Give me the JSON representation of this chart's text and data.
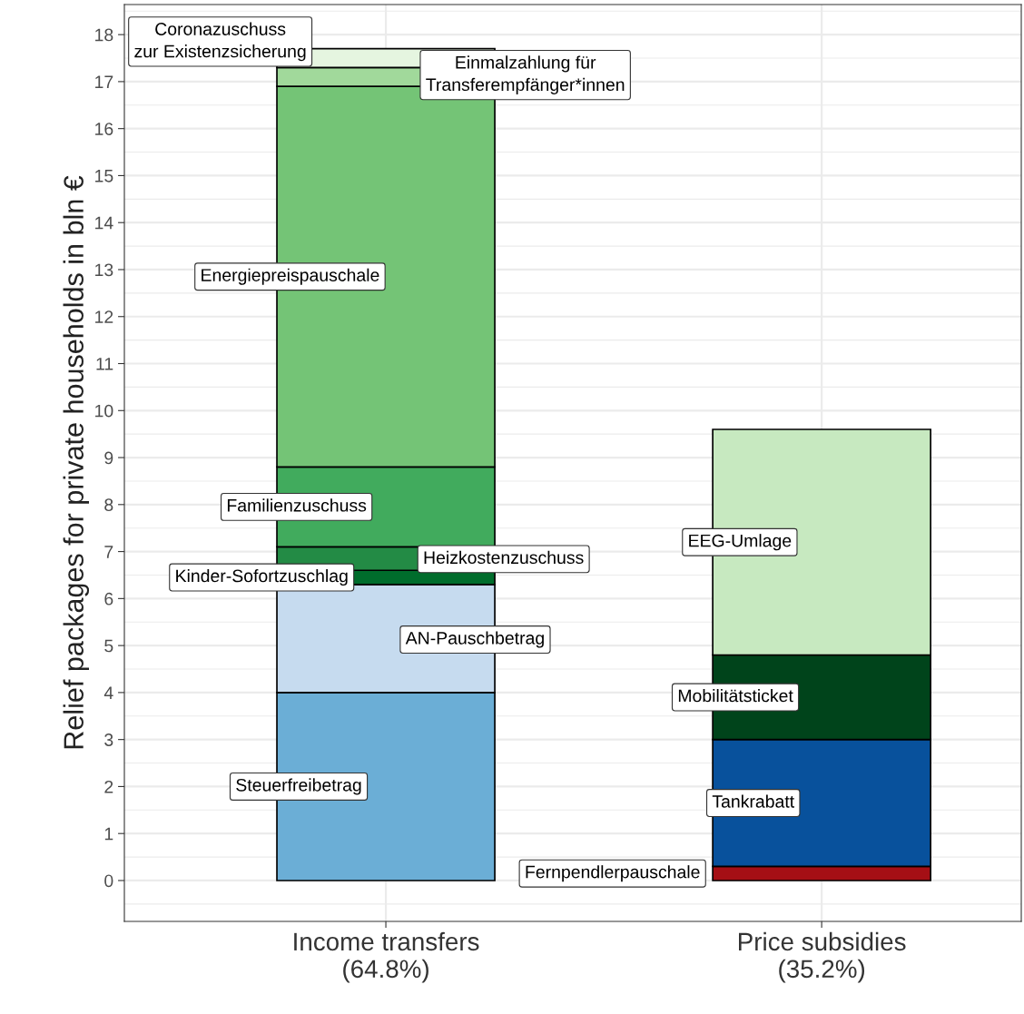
{
  "chart_data": {
    "type": "bar",
    "stacked": true,
    "categories": [
      "Income transfers\n(64.8%)",
      "Price subsidies\n(35.2%)"
    ],
    "ylabel": "Relief packages for private households in bln €",
    "ylim": [
      -0.87,
      18.64
    ],
    "yticks": [
      0,
      1,
      2,
      3,
      4,
      5,
      6,
      7,
      8,
      9,
      10,
      11,
      12,
      13,
      14,
      15,
      16,
      17,
      18
    ],
    "grid": true,
    "legend": false,
    "series": [
      {
        "name": "Steuerfreibetrag",
        "color": "#6baed6",
        "values": [
          4.0,
          null
        ]
      },
      {
        "name": "AN-Pauschbetrag",
        "color": "#c6dbef",
        "values": [
          2.3,
          null
        ]
      },
      {
        "name": "Kinder-Sofortzuschlag",
        "color": "#006d2c",
        "values": [
          0.3,
          null
        ]
      },
      {
        "name": "Heizkostenzuschuss",
        "color": "#238b45",
        "values": [
          0.5,
          null
        ]
      },
      {
        "name": "Familienzuschuss",
        "color": "#41ab5d",
        "values": [
          1.7,
          null
        ]
      },
      {
        "name": "Energiepreispauschale",
        "color": "#74c476",
        "values": [
          8.1,
          null
        ]
      },
      {
        "name": "Einmalzahlung für\nTransferempfänger*innen",
        "color": "#a1d99b",
        "values": [
          0.4,
          null
        ]
      },
      {
        "name": "Coronazuschuss\nzur Existenzsicherung",
        "color": "#e5f5e0",
        "values": [
          0.4,
          null
        ]
      },
      {
        "name": "Fernpendlerpauschale",
        "color": "#a50f15",
        "values": [
          null,
          0.3
        ]
      },
      {
        "name": "Tankrabatt",
        "color": "#08519c",
        "values": [
          null,
          2.7
        ]
      },
      {
        "name": "Mobilitätsticket",
        "color": "#00441b",
        "values": [
          null,
          1.8
        ]
      },
      {
        "name": "EEG-Umlage",
        "color": "#c7e9c0",
        "values": [
          null,
          4.8
        ]
      }
    ]
  }
}
